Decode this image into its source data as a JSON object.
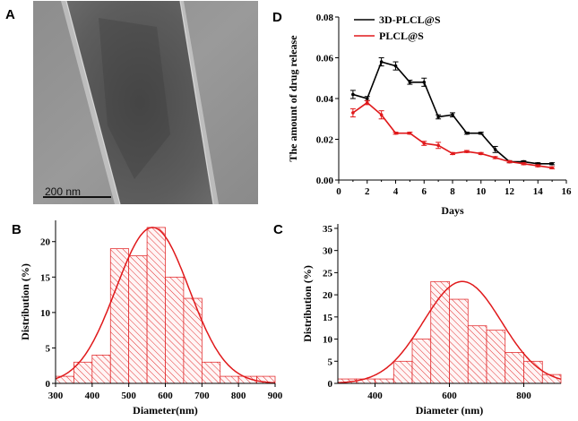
{
  "panels": {
    "a": "A",
    "b": "B",
    "c": "C",
    "d": "D"
  },
  "micrograph": {
    "scale_bar": "200 nm"
  },
  "colors": {
    "black_series": "#000000",
    "red_series": "#e0191b"
  },
  "chart_data": [
    {
      "id": "D",
      "type": "line",
      "title": "",
      "xlabel": "Days",
      "ylabel": "The amount of drug release",
      "xlim": [
        0,
        16
      ],
      "ylim": [
        0,
        0.08
      ],
      "xticks": [
        "0",
        "2",
        "4",
        "6",
        "8",
        "10",
        "12",
        "14",
        "16"
      ],
      "yticks": [
        "0.00",
        "0.02",
        "0.04",
        "0.06",
        "0.08"
      ],
      "x": [
        1,
        2,
        3,
        4,
        5,
        6,
        7,
        8,
        9,
        10,
        11,
        12,
        13,
        14,
        15
      ],
      "series": [
        {
          "name": "3D-PLCL@S",
          "color": "#000000",
          "values": [
            0.042,
            0.04,
            0.058,
            0.056,
            0.048,
            0.048,
            0.031,
            0.032,
            0.023,
            0.023,
            0.015,
            0.009,
            0.009,
            0.008,
            0.008
          ],
          "errors": [
            0.002,
            0.001,
            0.002,
            0.002,
            0.001,
            0.002,
            0.001,
            0.001,
            0.0005,
            0.0005,
            0.0015,
            0.0005,
            0.0005,
            0.0005,
            0.0005
          ]
        },
        {
          "name": "PLCL@S",
          "color": "#e0191b",
          "values": [
            0.033,
            0.038,
            0.032,
            0.023,
            0.023,
            0.018,
            0.017,
            0.013,
            0.014,
            0.013,
            0.011,
            0.009,
            0.008,
            0.007,
            0.006
          ],
          "errors": [
            0.002,
            0.001,
            0.002,
            0.0005,
            0.0005,
            0.001,
            0.0015,
            0.0005,
            0.0005,
            0.0005,
            0.0005,
            0.0005,
            0.0005,
            0.0005,
            0.0005
          ]
        }
      ],
      "legend": "top-left"
    },
    {
      "id": "B",
      "type": "bar",
      "subtype": "histogram",
      "xlabel": "Diameter(nm)",
      "ylabel": "Distribution (%)",
      "xlim": [
        300,
        900
      ],
      "ylim": [
        0,
        23
      ],
      "xticks": [
        "300",
        "400",
        "500",
        "600",
        "700",
        "800",
        "900"
      ],
      "yticks": [
        "0",
        "5",
        "10",
        "15",
        "20"
      ],
      "bin_width": 50,
      "bins": [
        {
          "start": 300,
          "value": 1
        },
        {
          "start": 350,
          "value": 3
        },
        {
          "start": 400,
          "value": 4
        },
        {
          "start": 450,
          "value": 19
        },
        {
          "start": 500,
          "value": 18
        },
        {
          "start": 550,
          "value": 22
        },
        {
          "start": 600,
          "value": 15
        },
        {
          "start": 650,
          "value": 12
        },
        {
          "start": 700,
          "value": 3
        },
        {
          "start": 750,
          "value": 1
        },
        {
          "start": 800,
          "value": 1
        },
        {
          "start": 850,
          "value": 1
        }
      ],
      "fit": {
        "type": "gaussian",
        "peak": 22,
        "mean": 565,
        "sigma": 100
      }
    },
    {
      "id": "C",
      "type": "bar",
      "subtype": "histogram",
      "xlabel": "Diameter (nm)",
      "ylabel": "Distribution (%)",
      "xlim": [
        300,
        900
      ],
      "ylim": [
        0,
        36
      ],
      "xticks": [
        "400",
        "600",
        "800"
      ],
      "yticks": [
        "0",
        "5",
        "10",
        "15",
        "20",
        "25",
        "30",
        "35"
      ],
      "bin_width": 50,
      "bins": [
        {
          "start": 300,
          "value": 1
        },
        {
          "start": 350,
          "value": 1
        },
        {
          "start": 400,
          "value": 1
        },
        {
          "start": 450,
          "value": 5
        },
        {
          "start": 500,
          "value": 10
        },
        {
          "start": 550,
          "value": 23
        },
        {
          "start": 600,
          "value": 19
        },
        {
          "start": 650,
          "value": 13
        },
        {
          "start": 700,
          "value": 12
        },
        {
          "start": 750,
          "value": 7
        },
        {
          "start": 800,
          "value": 5
        },
        {
          "start": 850,
          "value": 2
        }
      ],
      "fit": {
        "type": "gaussian",
        "peak": 23,
        "mean": 635,
        "sigma": 105
      }
    }
  ]
}
